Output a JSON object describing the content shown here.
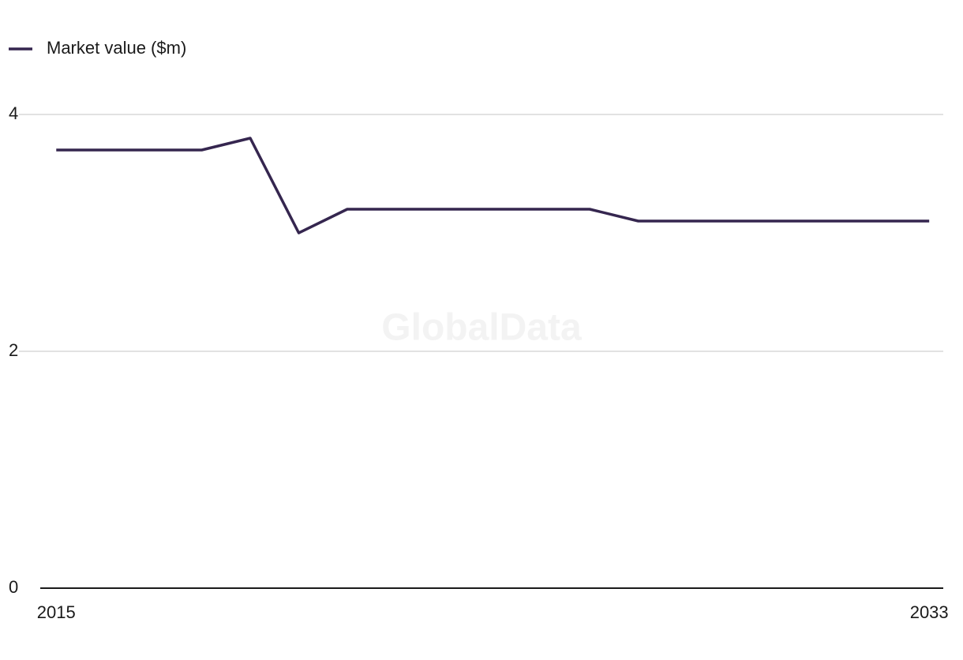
{
  "chart_data": {
    "type": "line",
    "x": [
      2015,
      2016,
      2017,
      2018,
      2019,
      2020,
      2021,
      2022,
      2023,
      2024,
      2025,
      2026,
      2027,
      2028,
      2029,
      2030,
      2031,
      2032,
      2033
    ],
    "series": [
      {
        "name": "Market value ($m)",
        "color": "#35264f",
        "values": [
          3.7,
          3.7,
          3.7,
          3.7,
          3.8,
          3.0,
          3.2,
          3.2,
          3.2,
          3.2,
          3.2,
          3.2,
          3.1,
          3.1,
          3.1,
          3.1,
          3.1,
          3.1,
          3.1
        ]
      }
    ],
    "xlim": [
      2014.67,
      2033.29
    ],
    "xticks": [
      2015,
      2033
    ],
    "ylim": [
      0,
      4
    ],
    "yticks": [
      0,
      2,
      4
    ],
    "grid": true,
    "legend": "top-left",
    "watermark": "GlobalData"
  }
}
